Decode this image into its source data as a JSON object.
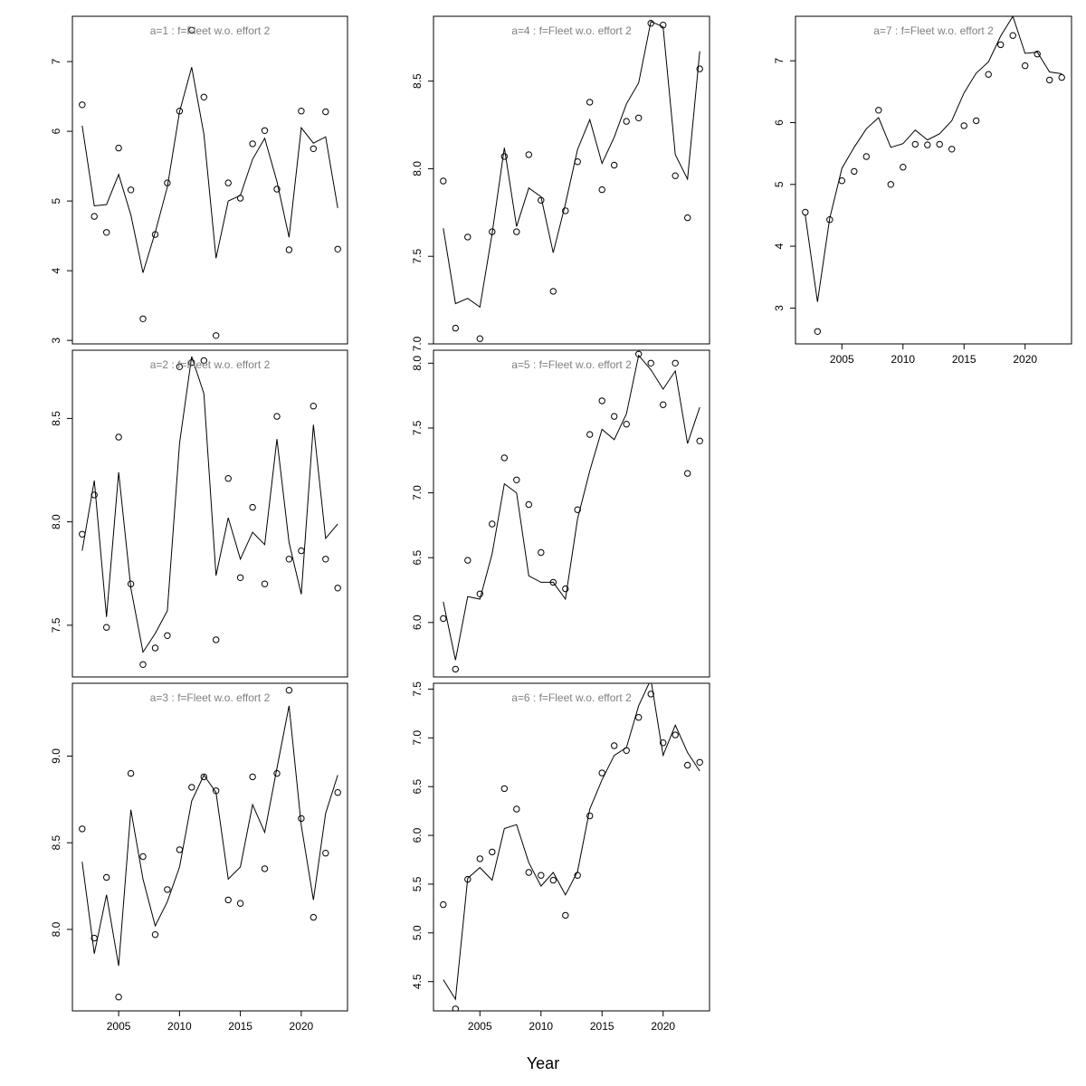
{
  "chart_data": {
    "type": "line",
    "xlabel": "Year",
    "colors": {
      "line": "#000000",
      "points": "#000000",
      "title": "#808080",
      "frame": "#000000"
    },
    "years": [
      2002,
      2003,
      2004,
      2005,
      2006,
      2007,
      2008,
      2009,
      2010,
      2011,
      2012,
      2013,
      2014,
      2015,
      2016,
      2017,
      2018,
      2019,
      2020,
      2021,
      2022,
      2023
    ],
    "panels": [
      {
        "title": "a=1  :  f=Fleet w.o. effort 2",
        "ylim": [
          2.95,
          7.65
        ],
        "yticks": [
          3,
          4,
          5,
          6,
          7
        ],
        "xticks": [],
        "fitted": [
          6.08,
          4.93,
          4.95,
          5.38,
          4.8,
          3.97,
          4.55,
          5.2,
          6.28,
          6.92,
          5.96,
          4.18,
          5.0,
          5.08,
          5.6,
          5.9,
          5.28,
          4.48,
          6.05,
          5.83,
          5.92,
          4.9
        ],
        "observed": [
          6.38,
          4.78,
          4.55,
          5.76,
          5.16,
          3.31,
          4.52,
          5.26,
          6.29,
          7.45,
          6.49,
          3.07,
          5.26,
          5.04,
          5.82,
          6.01,
          5.17,
          4.3,
          6.29,
          5.75,
          6.28,
          4.31
        ]
      },
      {
        "title": "a=2  :  f=Fleet w.o. effort 2",
        "ylim": [
          7.25,
          8.83
        ],
        "yticks": [
          7.5,
          8.0,
          8.5
        ],
        "xticks": [],
        "fitted": [
          7.86,
          8.2,
          7.54,
          8.24,
          7.68,
          7.37,
          7.46,
          7.57,
          8.38,
          8.8,
          8.62,
          7.74,
          8.02,
          7.82,
          7.95,
          7.89,
          8.4,
          7.9,
          7.65,
          8.47,
          7.92,
          7.99
        ],
        "observed": [
          7.94,
          8.13,
          7.49,
          8.41,
          7.7,
          7.31,
          7.39,
          7.45,
          8.75,
          8.77,
          8.78,
          7.43,
          8.21,
          7.73,
          8.07,
          7.7,
          8.51,
          7.82,
          7.86,
          8.56,
          7.82,
          7.68
        ]
      },
      {
        "title": "a=3  :  f=Fleet w.o. effort 2",
        "ylim": [
          7.53,
          9.42
        ],
        "yticks": [
          8.0,
          8.5,
          9.0
        ],
        "xticks": [
          2005,
          2010,
          2015,
          2020
        ],
        "fitted": [
          8.39,
          7.86,
          8.2,
          7.79,
          8.69,
          8.29,
          8.02,
          8.16,
          8.36,
          8.74,
          8.89,
          8.79,
          8.29,
          8.36,
          8.72,
          8.56,
          8.93,
          9.29,
          8.6,
          8.17,
          8.67,
          8.89
        ],
        "observed": [
          8.58,
          7.95,
          8.3,
          7.61,
          8.9,
          8.42,
          7.97,
          8.23,
          8.46,
          8.82,
          8.88,
          8.8,
          8.17,
          8.15,
          8.88,
          8.35,
          8.9,
          9.38,
          8.64,
          8.07,
          8.44,
          8.79
        ]
      },
      {
        "title": "a=4  :  f=Fleet w.o. effort 2",
        "ylim": [
          7.0,
          8.87
        ],
        "yticks": [
          7.0,
          7.5,
          8.0,
          8.5
        ],
        "xticks": [],
        "fitted": [
          7.66,
          7.23,
          7.26,
          7.21,
          7.63,
          8.12,
          7.67,
          7.89,
          7.84,
          7.52,
          7.8,
          8.11,
          8.28,
          8.03,
          8.18,
          8.37,
          8.49,
          8.84,
          8.81,
          8.08,
          7.94,
          8.67
        ],
        "observed": [
          7.93,
          7.09,
          7.61,
          7.03,
          7.64,
          8.07,
          7.64,
          8.08,
          7.82,
          7.3,
          7.76,
          8.04,
          8.38,
          7.88,
          8.02,
          8.27,
          8.29,
          8.83,
          8.82,
          7.96,
          7.72,
          8.57
        ]
      },
      {
        "title": "a=5  :  f=Fleet w.o. effort 2",
        "ylim": [
          5.58,
          8.1
        ],
        "yticks": [
          6.0,
          6.5,
          7.0,
          7.5,
          8.0
        ],
        "xticks": [],
        "fitted": [
          6.16,
          5.71,
          6.2,
          6.18,
          6.53,
          7.07,
          7.0,
          6.36,
          6.31,
          6.31,
          6.18,
          6.8,
          7.17,
          7.49,
          7.41,
          7.61,
          8.06,
          7.95,
          7.8,
          7.94,
          7.38,
          7.66
        ],
        "observed": [
          6.03,
          5.64,
          6.48,
          6.22,
          6.76,
          7.27,
          7.1,
          6.91,
          6.54,
          6.31,
          6.26,
          6.87,
          7.45,
          7.71,
          7.59,
          7.53,
          8.07,
          8.0,
          7.68,
          8.0,
          7.15,
          7.4
        ]
      },
      {
        "title": "a=6  :  f=Fleet w.o. effort 2",
        "ylim": [
          4.2,
          7.56
        ],
        "yticks": [
          4.5,
          5.0,
          5.5,
          6.0,
          6.5,
          7.0,
          7.5
        ],
        "xticks": [
          2005,
          2010,
          2015,
          2020
        ],
        "fitted": [
          4.52,
          4.32,
          5.56,
          5.67,
          5.54,
          6.07,
          6.11,
          5.72,
          5.48,
          5.62,
          5.39,
          5.63,
          6.27,
          6.57,
          6.82,
          6.9,
          7.33,
          7.6,
          6.82,
          7.13,
          6.85,
          6.66
        ],
        "observed": [
          5.29,
          4.22,
          5.55,
          5.76,
          5.83,
          6.48,
          6.27,
          5.62,
          5.59,
          5.54,
          5.18,
          5.59,
          6.2,
          6.64,
          6.92,
          6.87,
          7.21,
          7.45,
          6.95,
          7.03,
          6.72,
          6.75
        ]
      },
      {
        "title": "a=7  :  f=Fleet w.o. effort 2",
        "ylim": [
          2.42,
          7.72
        ],
        "yticks": [
          3,
          4,
          5,
          6,
          7
        ],
        "xticks": [
          2005,
          2010,
          2015,
          2020
        ],
        "fitted": [
          4.5,
          3.1,
          4.45,
          5.26,
          5.6,
          5.9,
          6.08,
          5.6,
          5.66,
          5.88,
          5.72,
          5.82,
          6.03,
          6.48,
          6.8,
          6.98,
          7.4,
          7.72,
          7.12,
          7.14,
          6.82,
          6.79
        ],
        "observed": [
          4.55,
          2.62,
          4.43,
          5.06,
          5.21,
          5.45,
          6.2,
          5.0,
          5.28,
          5.65,
          5.64,
          5.65,
          5.57,
          5.95,
          6.03,
          6.78,
          7.26,
          7.41,
          6.92,
          7.11,
          6.69,
          6.73
        ]
      }
    ]
  }
}
